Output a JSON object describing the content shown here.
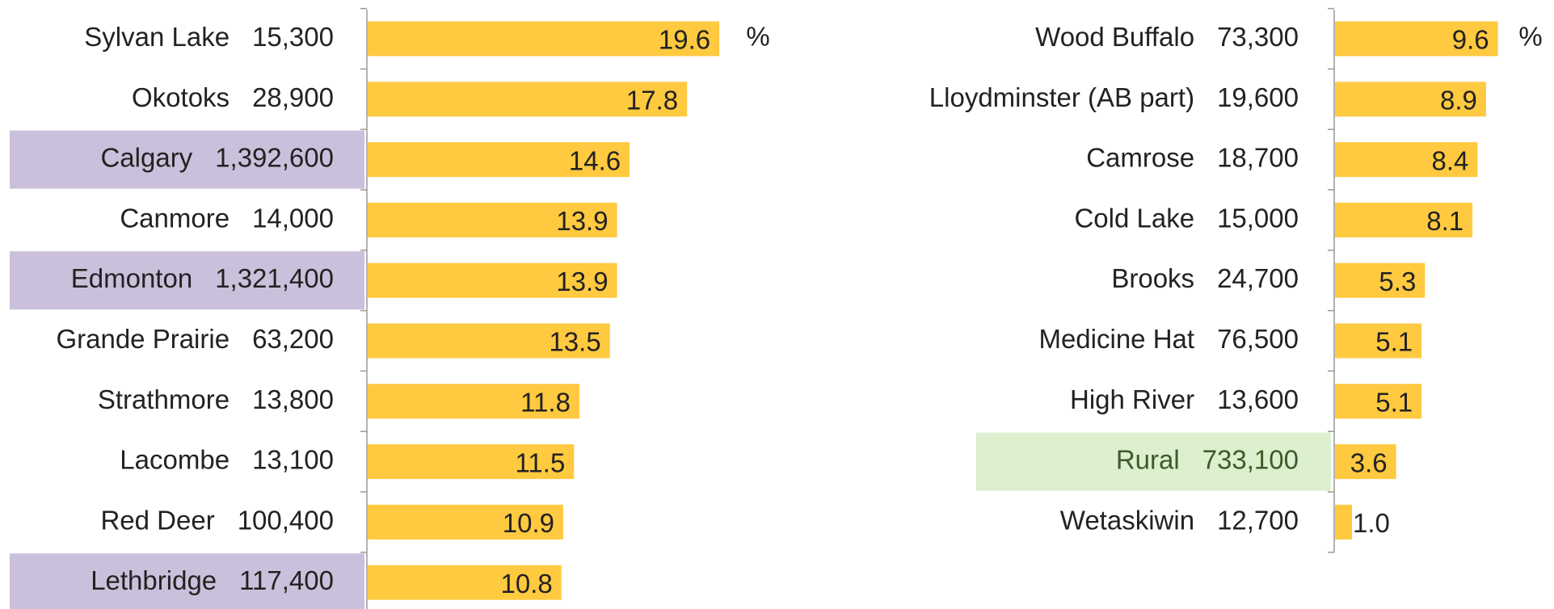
{
  "chart_data": [
    {
      "type": "bar",
      "orientation": "horizontal",
      "unit_label": "%",
      "categories": [
        "Sylvan Lake",
        "Okotoks",
        "Calgary",
        "Canmore",
        "Edmonton",
        "Grande Prairie",
        "Strathmore",
        "Lacombe",
        "Red Deer",
        "Lethbridge"
      ],
      "populations": [
        "15,300",
        "28,900",
        "1,392,600",
        "14,000",
        "1,321,400",
        "63,200",
        "13,800",
        "13,100",
        "100,400",
        "117,400"
      ],
      "values": [
        19.6,
        17.8,
        14.6,
        13.9,
        13.9,
        13.5,
        11.8,
        11.5,
        10.9,
        10.8
      ],
      "highlights": [
        null,
        null,
        "#cbc0db",
        null,
        "#cbc0db",
        null,
        null,
        null,
        null,
        "#cbc0db"
      ],
      "color": "#ffc940",
      "xlim": [
        0,
        20
      ]
    },
    {
      "type": "bar",
      "orientation": "horizontal",
      "unit_label": "%",
      "categories": [
        "Wood Buffalo",
        "Lloydminster (AB part)",
        "Camrose",
        "Cold Lake",
        "Brooks",
        "Medicine Hat",
        "High River",
        "Rural",
        "Wetaskiwin"
      ],
      "populations": [
        "73,300",
        "19,600",
        "18,700",
        "15,000",
        "24,700",
        "76,500",
        "13,600",
        "733,100",
        "12,700"
      ],
      "values": [
        9.6,
        8.9,
        8.4,
        8.1,
        5.3,
        5.1,
        5.1,
        3.6,
        1.0
      ],
      "value_labels": [
        "9.6",
        "8.9",
        "8.4",
        "8.1",
        "5.3",
        "5.1",
        "5.1",
        "3.6",
        "1.0"
      ],
      "highlights": [
        null,
        null,
        null,
        null,
        null,
        null,
        null,
        "#dcefcf",
        null
      ],
      "color": "#ffc940",
      "xlim": [
        0,
        10
      ]
    }
  ]
}
